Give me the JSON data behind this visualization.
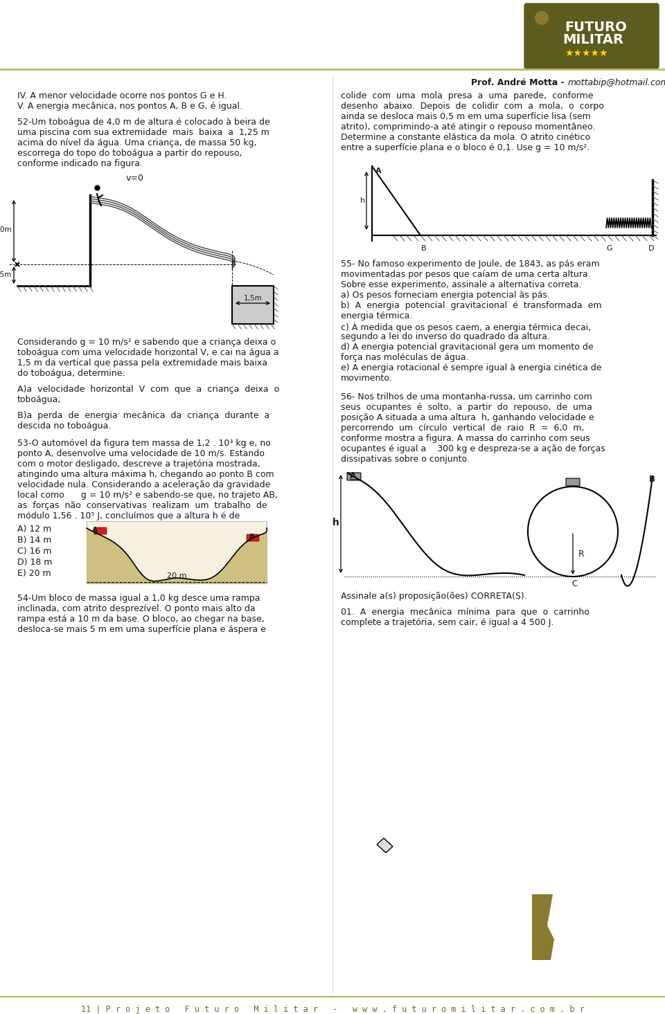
{
  "bg_color": "#ffffff",
  "olive_color": "#6b6b2a",
  "line_color_header": "#c8c87a",
  "text_dark": "#1a1a1a",
  "footer_text": "11 | P r o j e t o   F u t u r o   M i l i t a r   -   w w w . f u t u r o m i l i t a r . c o m . b r",
  "block1_lines": [
    "IV. A menor velocidade ocorre nos pontos G e H.",
    "V. A energia mecânica, nos pontos A, B e G, é igual."
  ],
  "block52_body": [
    "52-Um toboágua de 4,0 m de altura é colocado à beira de",
    "uma piscina com sua extremidade  mais  baixa  a  1,25 m",
    "acima do nível da água. Uma criança, de massa 50 kg,",
    "escorrega do topo do toboágua a partir do repouso,",
    "conforme indicado na figura."
  ],
  "block52_right": [
    "colide  com  uma  mola  presa  a  uma  parede,  conforme",
    "desenho  abaixo.  Depois  de  colidir  com  a  mola,  o  corpo",
    "ainda se desloca mais 0,5 m em uma superfície lisa (sem",
    "atrito), comprimindo-a até atingir o repouso momentâneo.",
    "Determine a constante elástica da mola. O atrito cinético",
    "entre a superfície plana e o bloco é 0,1. Use g = 10 m/s²."
  ],
  "block52_consider": [
    "Considerando g = 10 m/s² e sabendo que a criança deixa o",
    "toboágua com uma velocidade horizontal V, e cai na água a",
    "1,5 m da vertical que passa pela extremidade mais baixa",
    "do toboágua, determine:"
  ],
  "block52_a": "A)a  velocidade  horizontal  V  com  que  a  criança  deixa  o",
  "block52_a2": "toboágua;",
  "block52_b": "B)a  perda  de  energia  mecânica  da  criança  durante  a",
  "block52_b2": "descida no toboágua.",
  "block53_body": [
    "53-O automóvel da figura tem massa de 1,2 . 10³ kg e, no",
    "ponto A, desenvolve uma velocidade de 10 m/s. Estando",
    "com o motor desligado, descreve a trajetória mostrada,",
    "atingindo uma altura máxima h, chegando ao ponto B com",
    "velocidade nula. Considerando a aceleração da gravidade",
    "local como      g = 10 m/s² e sabendo-se que, no trajeto AB,",
    "as  forças  não  conservativas  realizam  um  trabalho  de",
    "módulo 1,56 . 10⁵ J, concluímos que a altura h é de"
  ],
  "block53_options": [
    "A) 12 m",
    "B) 14 m",
    "C) 16 m",
    "D) 18 m",
    "E) 20 m"
  ],
  "block54_body": [
    "54-Um bloco de massa igual a 1,0 kg desce uma rampa",
    "inclinada, com atrito desprezível. O ponto mais alto da",
    "rampa está a 10 m da base. O bloco, ao chegar na base,",
    "desloca-se mais 5 m em uma superfície plana e áspera e"
  ],
  "block55_body": [
    "55- No famoso experimento de Joule, de 1843, as pás eram",
    "movimentadas por pesos que caíam de uma certa altura.",
    "Sobre esse experimento, assinale a alternativa correta.",
    "a) Os pesos forneciam energia potencial às pás.",
    "b)  A  energia  potencial  gravitacional  é  transformada  em",
    "energia térmica.",
    "c) À medida que os pesos caem, a energia térmica decai,",
    "segundo a lei do inverso do quadrado da altura.",
    "d) A energia potencial gravitacional gera um momento de",
    "força nas moléculas de água.",
    "e) A energia rotacional é sempre igual à energia cinética de",
    "movimento."
  ],
  "block56_body": [
    "56- Nos trilhos de uma montanha-russa, um carrinho com",
    "seus  ocupantes  é  solto,  a  partir  do  repouso,  de  uma",
    "posição A situada a uma altura  h, ganhando velocidade e",
    "percorrendo  um  círculo  vertical  de  raio  R  =  6,0  m,",
    "conforme mostra a figura. A massa do carrinho com seus",
    "ocupantes é igual a    300 kg e despreza-se a ação de forças",
    "dissipativas sobre o conjunto."
  ],
  "block56_assinale": "Assinale a(s) proposição(ões) CORRETA(S).",
  "block01_body": [
    "01.  A  energia  mecânica  mínima  para  que  o  carrinho",
    "complete a trajetória, sem cair, é igual a 4 500 J."
  ]
}
